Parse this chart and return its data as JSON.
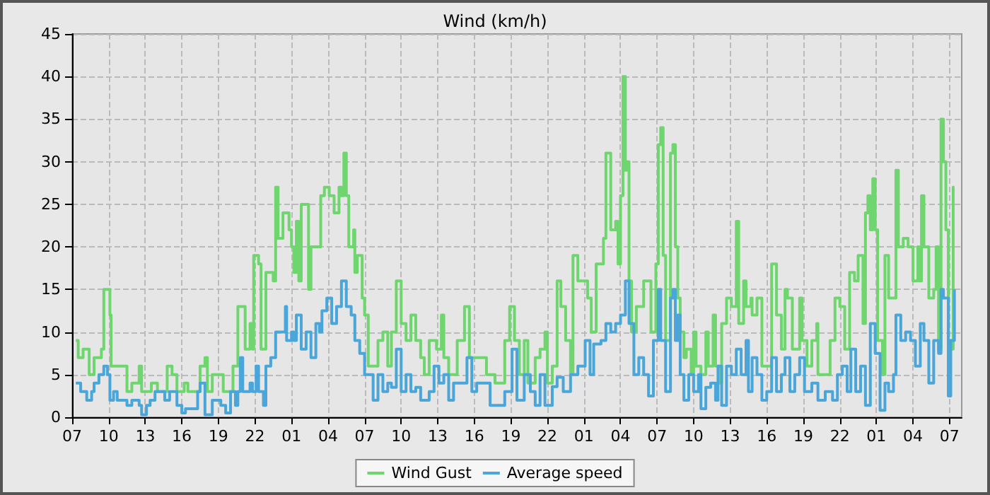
{
  "chart_data": {
    "type": "step",
    "title": "Wind (km/h)",
    "xlim": [
      "--01-01T07:00",
      "--01-04T08:00"
    ],
    "xticks": [
      {
        "value": "--01-01T07:00",
        "label": "07"
      },
      {
        "value": "--01-01T10:00",
        "label": "10"
      },
      {
        "value": "--01-01T13:00",
        "label": "13"
      },
      {
        "value": "--01-01T16:00",
        "label": "16"
      },
      {
        "value": "--01-01T19:00",
        "label": "19"
      },
      {
        "value": "--01-01T22:00",
        "label": "22"
      },
      {
        "value": "--01-02T01:00",
        "label": "01"
      },
      {
        "value": "--01-02T04:00",
        "label": "04"
      },
      {
        "value": "--01-02T07:00",
        "label": "07"
      },
      {
        "value": "--01-02T10:00",
        "label": "10"
      },
      {
        "value": "--01-02T13:00",
        "label": "13"
      },
      {
        "value": "--01-02T16:00",
        "label": "16"
      },
      {
        "value": "--01-02T19:00",
        "label": "19"
      },
      {
        "value": "--01-02T22:00",
        "label": "22"
      },
      {
        "value": "--01-03T01:00",
        "label": "01"
      },
      {
        "value": "--01-03T04:00",
        "label": "04"
      },
      {
        "value": "--01-03T07:00",
        "label": "07"
      },
      {
        "value": "--01-03T10:00",
        "label": "10"
      },
      {
        "value": "--01-03T13:00",
        "label": "13"
      },
      {
        "value": "--01-03T16:00",
        "label": "16"
      },
      {
        "value": "--01-03T19:00",
        "label": "19"
      },
      {
        "value": "--01-03T22:00",
        "label": "22"
      },
      {
        "value": "--01-04T01:00",
        "label": "01"
      },
      {
        "value": "--01-04T04:00",
        "label": "04"
      },
      {
        "value": "--01-04T07:00",
        "label": "07"
      }
    ],
    "ylim": [
      0,
      45
    ],
    "yticks": [
      0,
      5,
      10,
      15,
      20,
      25,
      30,
      35,
      40,
      45
    ],
    "grid": true,
    "legend": "bottom",
    "marker": "none",
    "line_style": "solid",
    "series": [
      {
        "name": "Wind Gust",
        "color": "#6fd66f",
        "x": [
          "--01-01T07:18",
          "--01-01T07:30",
          "--01-01T07:54",
          "--01-01T08:24",
          "--01-01T08:48",
          "--01-01T09:24",
          "--01-01T09:36",
          "--01-01T09:54",
          "--01-01T10:06",
          "--01-01T10:12",
          "--01-01T11:06",
          "--01-01T11:30",
          "--01-01T11:54",
          "--01-01T12:30",
          "--01-01T12:42",
          "--01-01T13:30",
          "--01-01T14:00",
          "--01-01T14:48",
          "--01-01T15:12",
          "--01-01T15:36",
          "--01-01T16:12",
          "--01-01T16:30",
          "--01-01T17:18",
          "--01-01T17:30",
          "--01-01T17:54",
          "--01-01T18:06",
          "--01-01T18:30",
          "--01-01T19:12",
          "--01-01T19:24",
          "--01-01T20:12",
          "--01-01T20:36",
          "--01-01T21:00",
          "--01-01T21:12",
          "--01-01T21:36",
          "--01-01T21:48",
          "--01-01T21:54",
          "--01-01T22:18",
          "--01-01T22:30",
          "--01-01T22:54",
          "--01-01T23:30",
          "--01-01T23:42",
          "--01-01T23:54",
          "--01-02T00:18",
          "--01-02T00:42",
          "--01-02T00:48",
          "--01-02T01:00",
          "--01-02T01:12",
          "--01-02T01:24",
          "--01-02T01:36",
          "--01-02T01:48",
          "--01-02T02:12",
          "--01-02T02:24",
          "--01-02T02:36",
          "--01-02T03:12",
          "--01-02T03:24",
          "--01-02T03:42",
          "--01-02T04:06",
          "--01-02T04:30",
          "--01-02T04:54",
          "--01-02T05:06",
          "--01-02T05:18",
          "--01-02T05:30",
          "--01-02T05:42",
          "--01-02T06:06",
          "--01-02T06:12",
          "--01-02T06:24",
          "--01-02T06:48",
          "--01-02T07:00",
          "--01-02T07:18",
          "--01-02T07:42",
          "--01-02T08:06",
          "--01-02T08:30",
          "--01-02T08:54",
          "--01-02T09:12",
          "--01-02T09:36",
          "--01-02T10:00",
          "--01-02T10:24",
          "--01-02T10:48",
          "--01-02T11:12",
          "--01-02T11:36",
          "--01-02T11:54",
          "--01-02T12:18",
          "--01-02T12:54",
          "--01-02T13:18",
          "--01-02T13:30",
          "--01-02T13:54",
          "--01-02T14:36",
          "--01-02T15:12",
          "--01-02T15:36",
          "--01-02T16:12",
          "--01-02T17:00",
          "--01-02T17:42",
          "--01-02T18:30",
          "--01-02T18:54",
          "--01-02T19:18",
          "--01-02T19:42",
          "--01-02T20:06",
          "--01-02T20:24",
          "--01-02T21:00",
          "--01-02T21:24",
          "--01-02T21:48",
          "--01-02T22:00",
          "--01-02T22:24",
          "--01-02T22:48",
          "--01-02T23:06",
          "--01-02T23:30",
          "--01-02T23:54",
          "--01-03T00:06",
          "--01-03T00:30",
          "--01-03T00:54",
          "--01-03T01:18",
          "--01-03T01:36",
          "--01-03T02:00",
          "--01-03T02:36",
          "--01-03T02:48",
          "--01-03T03:12",
          "--01-03T03:36",
          "--01-03T03:48",
          "--01-03T04:00",
          "--01-03T04:12",
          "--01-03T04:24",
          "--01-03T04:30",
          "--01-03T04:42",
          "--01-03T04:54",
          "--01-03T05:18",
          "--01-03T05:54",
          "--01-03T06:30",
          "--01-03T06:54",
          "--01-03T07:06",
          "--01-03T07:18",
          "--01-03T07:30",
          "--01-03T07:42",
          "--01-03T08:06",
          "--01-03T08:18",
          "--01-03T08:30",
          "--01-03T08:42",
          "--01-03T08:54",
          "--01-03T09:12",
          "--01-03T09:24",
          "--01-03T09:48",
          "--01-03T10:00",
          "--01-03T10:12",
          "--01-03T10:36",
          "--01-03T11:00",
          "--01-03T11:12",
          "--01-03T11:36",
          "--01-03T11:48",
          "--01-03T12:06",
          "--01-03T12:18",
          "--01-03T12:42",
          "--01-03T13:06",
          "--01-03T13:30",
          "--01-03T13:42",
          "--01-03T14:06",
          "--01-03T14:18",
          "--01-03T14:42",
          "--01-03T14:48",
          "--01-03T15:12",
          "--01-03T15:36",
          "--01-03T16:00",
          "--01-03T16:24",
          "--01-03T16:48",
          "--01-03T17:12",
          "--01-03T17:30",
          "--01-03T17:42",
          "--01-03T18:06",
          "--01-03T18:42",
          "--01-03T18:54",
          "--01-03T19:18",
          "--01-03T19:42",
          "--01-03T20:06",
          "--01-03T20:12",
          "--01-03T20:48",
          "--01-03T21:12",
          "--01-03T21:36",
          "--01-03T22:00",
          "--01-03T22:24",
          "--01-03T22:48",
          "--01-03T23:12",
          "--01-03T23:30",
          "--01-03T23:54",
          "--01-04T00:06",
          "--01-04T00:18",
          "--01-04T00:30",
          "--01-04T00:42",
          "--01-04T00:54",
          "--01-04T01:06",
          "--01-04T01:30",
          "--01-04T01:42",
          "--01-04T02:00",
          "--01-04T02:24",
          "--01-04T02:36",
          "--01-04T02:48",
          "--01-04T03:12",
          "--01-04T03:36",
          "--01-04T04:00",
          "--01-04T04:24",
          "--01-04T04:30",
          "--01-04T04:42",
          "--01-04T04:54",
          "--01-04T05:18",
          "--01-04T05:42",
          "--01-04T05:54",
          "--01-04T06:06",
          "--01-04T06:18",
          "--01-04T06:30",
          "--01-04T06:42",
          "--01-04T06:54",
          "--01-04T07:06",
          "--01-04T07:18",
          "--01-04T07:24"
        ],
        "values": [
          9,
          7,
          8,
          5,
          7,
          8,
          15,
          15,
          12,
          6,
          6,
          3,
          4,
          6,
          3,
          4,
          3,
          6,
          5,
          3,
          4,
          3,
          3,
          6,
          7,
          3,
          5,
          5,
          3,
          6,
          13,
          13,
          8,
          11,
          8,
          19,
          18,
          8,
          17,
          16,
          27,
          21,
          24,
          24,
          22,
          20,
          17,
          23,
          16,
          25,
          25,
          15,
          20,
          20,
          26,
          27,
          26,
          24,
          27,
          26,
          31,
          26,
          20,
          22,
          17,
          19,
          14,
          12,
          6,
          6,
          9,
          10,
          6,
          10,
          16,
          11,
          9,
          12,
          9,
          7,
          5,
          9,
          8,
          12,
          7,
          5,
          9,
          13,
          7,
          7,
          5,
          4,
          9,
          13,
          9,
          5,
          9,
          4,
          7,
          8,
          10,
          4,
          6,
          16,
          13,
          9,
          5,
          19,
          16,
          16,
          14,
          10,
          18,
          21,
          31,
          22,
          23,
          18,
          26,
          40,
          29,
          30,
          16,
          10,
          13,
          16,
          10,
          18,
          32,
          34,
          19,
          9,
          31,
          32,
          20,
          14,
          10,
          7,
          8,
          5,
          10,
          6,
          5,
          10,
          6,
          12,
          6,
          4,
          11,
          14,
          13,
          23,
          11,
          16,
          13,
          14,
          12,
          14,
          6,
          6,
          18,
          12,
          8,
          15,
          14,
          8,
          14,
          9,
          6,
          9,
          11,
          5,
          5,
          9,
          14,
          13,
          8,
          17,
          16,
          19,
          11,
          24,
          26,
          22,
          28,
          22,
          9,
          5,
          19,
          14,
          14,
          29,
          20,
          21,
          20,
          16,
          20,
          16,
          26,
          20,
          14,
          15,
          20,
          8,
          35,
          30,
          22,
          9,
          8,
          27,
          27
        ]
      },
      {
        "name": "Average speed",
        "color": "#4aa6d8",
        "x": [
          "--01-01T07:18",
          "--01-01T07:42",
          "--01-01T08:12",
          "--01-01T08:36",
          "--01-01T08:48",
          "--01-01T09:12",
          "--01-01T09:36",
          "--01-01T09:54",
          "--01-01T10:06",
          "--01-01T10:24",
          "--01-01T10:42",
          "--01-01T11:30",
          "--01-01T11:54",
          "--01-01T12:30",
          "--01-01T12:42",
          "--01-01T13:06",
          "--01-01T13:24",
          "--01-01T13:48",
          "--01-01T14:36",
          "--01-01T15:00",
          "--01-01T15:36",
          "--01-01T16:00",
          "--01-01T16:18",
          "--01-01T16:54",
          "--01-01T17:18",
          "--01-01T17:30",
          "--01-01T17:54",
          "--01-01T18:30",
          "--01-01T19:12",
          "--01-01T19:36",
          "--01-01T20:00",
          "--01-01T20:24",
          "--01-01T20:36",
          "--01-01T20:48",
          "--01-01T21:00",
          "--01-01T21:36",
          "--01-01T21:48",
          "--01-01T22:06",
          "--01-01T22:18",
          "--01-01T22:42",
          "--01-01T22:54",
          "--01-01T23:18",
          "--01-01T23:42",
          "--01-02T00:06",
          "--01-02T00:30",
          "--01-02T00:36",
          "--01-02T01:00",
          "--01-02T01:12",
          "--01-02T01:24",
          "--01-02T01:48",
          "--01-02T02:12",
          "--01-02T02:36",
          "--01-02T03:00",
          "--01-02T03:18",
          "--01-02T03:30",
          "--01-02T03:54",
          "--01-02T04:18",
          "--01-02T04:42",
          "--01-02T05:06",
          "--01-02T05:30",
          "--01-02T05:54",
          "--01-02T06:12",
          "--01-02T06:36",
          "--01-02T07:00",
          "--01-02T07:18",
          "--01-02T07:42",
          "--01-02T08:06",
          "--01-02T08:30",
          "--01-02T08:54",
          "--01-02T09:12",
          "--01-02T09:36",
          "--01-02T10:00",
          "--01-02T10:24",
          "--01-02T10:48",
          "--01-02T11:12",
          "--01-02T11:36",
          "--01-02T12:18",
          "--01-02T12:42",
          "--01-02T13:06",
          "--01-02T13:30",
          "--01-02T13:54",
          "--01-02T14:18",
          "--01-02T14:48",
          "--01-02T15:24",
          "--01-02T15:48",
          "--01-02T16:12",
          "--01-02T16:48",
          "--01-02T17:18",
          "--01-02T18:06",
          "--01-02T18:30",
          "--01-02T19:06",
          "--01-02T19:30",
          "--01-02T20:06",
          "--01-02T20:36",
          "--01-02T21:00",
          "--01-02T21:24",
          "--01-02T21:48",
          "--01-02T22:24",
          "--01-02T22:48",
          "--01-02T23:18",
          "--01-02T23:54",
          "--01-03T00:30",
          "--01-03T01:06",
          "--01-03T01:30",
          "--01-03T01:48",
          "--01-03T02:24",
          "--01-03T02:48",
          "--01-03T03:12",
          "--01-03T03:36",
          "--01-03T04:00",
          "--01-03T04:24",
          "--01-03T04:42",
          "--01-03T05:06",
          "--01-03T05:30",
          "--01-03T05:54",
          "--01-03T06:18",
          "--01-03T06:42",
          "--01-03T07:06",
          "--01-03T07:18",
          "--01-03T07:42",
          "--01-03T08:06",
          "--01-03T08:18",
          "--01-03T08:30",
          "--01-03T08:42",
          "--01-03T08:54",
          "--01-03T09:12",
          "--01-03T09:36",
          "--01-03T10:00",
          "--01-03T10:24",
          "--01-03T10:36",
          "--01-03T11:00",
          "--01-03T11:24",
          "--01-03T11:48",
          "--01-03T12:00",
          "--01-03T12:18",
          "--01-03T12:42",
          "--01-03T13:06",
          "--01-03T13:30",
          "--01-03T13:54",
          "--01-03T14:18",
          "--01-03T14:30",
          "--01-03T14:48",
          "--01-03T15:12",
          "--01-03T15:36",
          "--01-03T16:00",
          "--01-03T16:24",
          "--01-03T16:48",
          "--01-03T17:12",
          "--01-03T17:30",
          "--01-03T17:54",
          "--01-03T18:18",
          "--01-03T18:42",
          "--01-03T19:06",
          "--01-03T19:42",
          "--01-03T20:12",
          "--01-03T20:48",
          "--01-03T21:24",
          "--01-03T21:48",
          "--01-03T22:12",
          "--01-03T22:36",
          "--01-03T22:54",
          "--01-03T23:18",
          "--01-03T23:42",
          "--01-04T00:06",
          "--01-04T00:30",
          "--01-04T00:54",
          "--01-04T01:18",
          "--01-04T01:42",
          "--01-04T02:00",
          "--01-04T02:24",
          "--01-04T02:36",
          "--01-04T03:00",
          "--01-04T03:24",
          "--01-04T03:48",
          "--01-04T04:12",
          "--01-04T04:36",
          "--01-04T04:54",
          "--01-04T05:18",
          "--01-04T05:42",
          "--01-04T06:06",
          "--01-04T06:18",
          "--01-04T06:30",
          "--01-04T06:54",
          "--01-04T07:06",
          "--01-04T07:24"
        ],
        "values": [
          4,
          3,
          2,
          3,
          4,
          5,
          6,
          5,
          2,
          3,
          2,
          1.4,
          2,
          1.4,
          0.3,
          1.4,
          2,
          3,
          2,
          3,
          1.4,
          0.5,
          1,
          1,
          3,
          4,
          0.3,
          2,
          1.4,
          0.5,
          3,
          1.4,
          3,
          7,
          3,
          4,
          3,
          6,
          3,
          1.4,
          6,
          7,
          10,
          10,
          13,
          9,
          10,
          9,
          12,
          8,
          10,
          7,
          11,
          10,
          12.5,
          14,
          11,
          13,
          16,
          13,
          12,
          9,
          7.5,
          5,
          5,
          2,
          5,
          3,
          4,
          3.5,
          8,
          3,
          5,
          3,
          3.5,
          2,
          3,
          6,
          4,
          5,
          2,
          4,
          4,
          7,
          3,
          4,
          4,
          1.4,
          1.4,
          3,
          8,
          2,
          5,
          3,
          1.4,
          5,
          1.4,
          3.6,
          4.7,
          3,
          5,
          6,
          9,
          5,
          8.6,
          9,
          11,
          10,
          11,
          12,
          16,
          11,
          5,
          7,
          5,
          2.5,
          9,
          15,
          9,
          3,
          14,
          15,
          9,
          12,
          5,
          2,
          5,
          3,
          5,
          1,
          3.5,
          4,
          2,
          6,
          1.4,
          6,
          5,
          8,
          5,
          9,
          3,
          7,
          5,
          2,
          3,
          7,
          3,
          5,
          7,
          3,
          5,
          7,
          3,
          4,
          2,
          3,
          2,
          5,
          6,
          3,
          8,
          3,
          6,
          1.4,
          11,
          7.5,
          0.8,
          4,
          3,
          5,
          12,
          9,
          10,
          9,
          6,
          11,
          9,
          4,
          9,
          7.5,
          15,
          14,
          2.5,
          9,
          15
        ]
      }
    ]
  }
}
